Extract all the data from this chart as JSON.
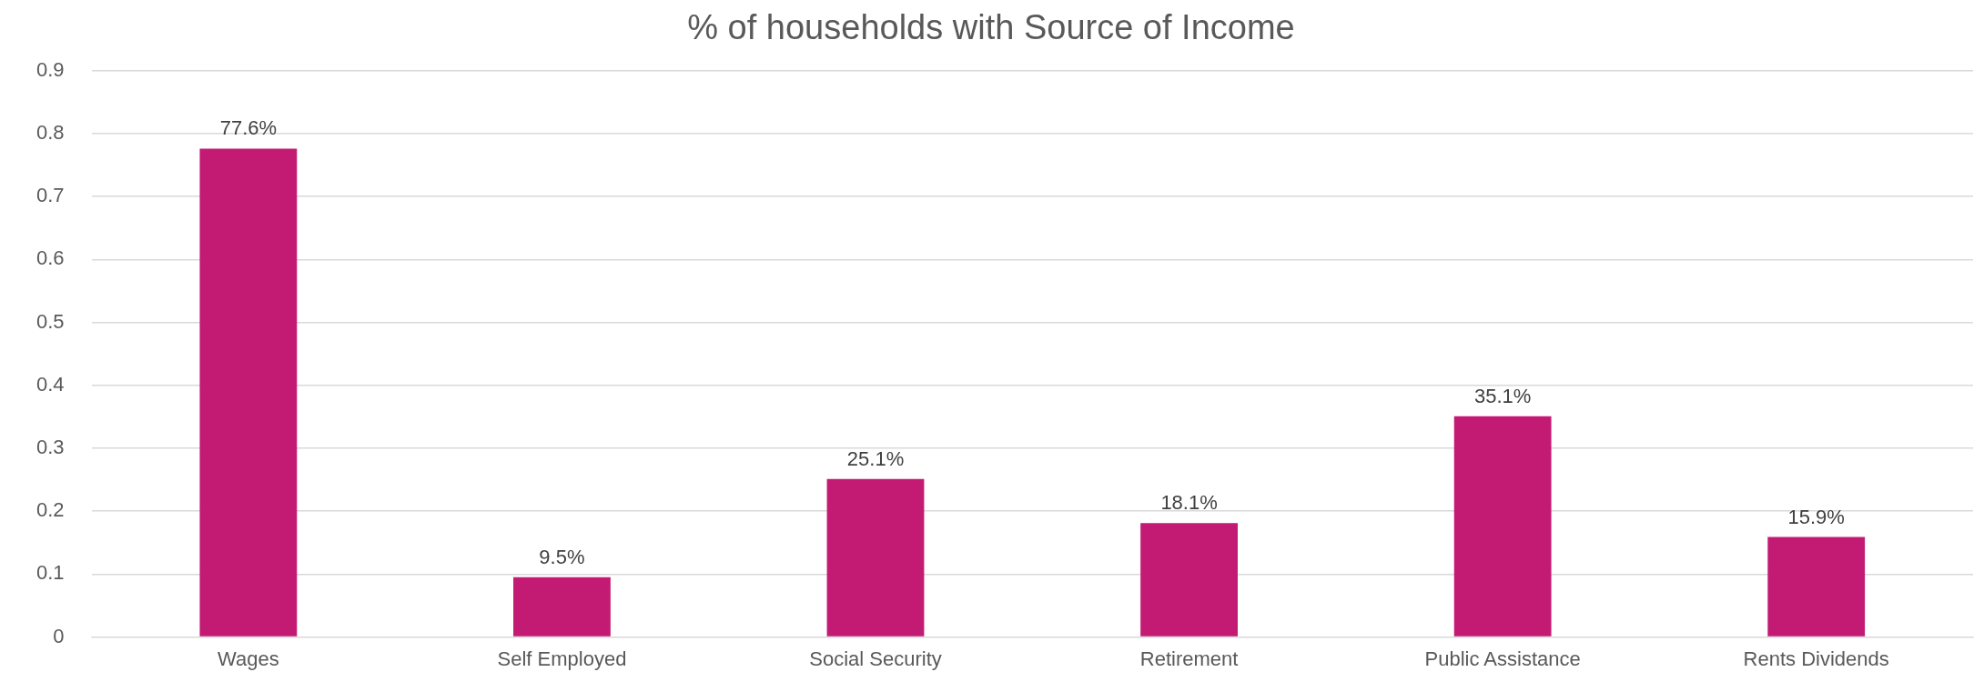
{
  "chart_data": {
    "type": "bar",
    "title": "% of households with Source of Income",
    "categories": [
      "Wages",
      "Self Employed",
      "Social Security",
      "Retirement",
      "Public Assistance",
      "Rents Dividends"
    ],
    "values": [
      0.776,
      0.095,
      0.251,
      0.181,
      0.351,
      0.159
    ],
    "value_labels": [
      "77.6%",
      "9.5%",
      "25.1%",
      "18.1%",
      "35.1%",
      "15.9%"
    ],
    "color": "#c31b74",
    "ylim": [
      0,
      0.9
    ],
    "yticks": [
      0,
      0.1,
      0.2,
      0.3,
      0.4,
      0.5,
      0.6,
      0.7,
      0.8,
      0.9
    ],
    "grid": "y",
    "legend": false
  }
}
